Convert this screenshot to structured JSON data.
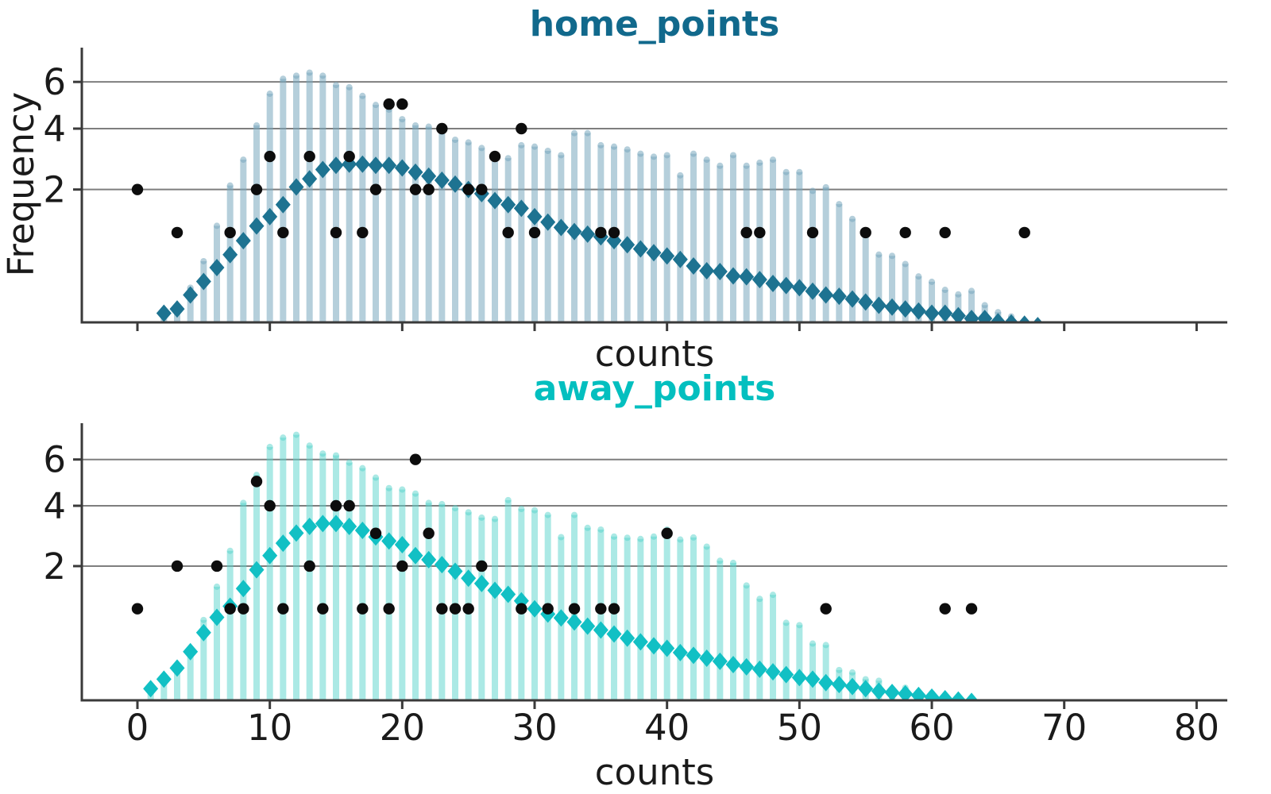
{
  "figure": {
    "background": "#ffffff",
    "grid_color": "#7e7e7e",
    "spine_color": "#3a3a3a",
    "text_color": "#1a1a1a",
    "observed_dot_color": "#0d0d0d"
  },
  "chart_data": [
    {
      "type": "bar",
      "id": "home",
      "title": "home_points",
      "title_color": "#11698c",
      "xlabel": "counts",
      "ylabel": "Frequency",
      "yscale": "sqrt",
      "grid": true,
      "xticks": [
        0,
        10,
        20,
        30,
        40,
        50,
        60,
        70,
        80
      ],
      "xtick_labels": [
        "0",
        "10",
        "20",
        "30",
        "40",
        "50",
        "60",
        "70",
        "80"
      ],
      "show_xtick_labels": false,
      "ytick_labels": [
        "6",
        "4",
        "2"
      ],
      "yticks": [
        6,
        4,
        2
      ],
      "xlim": [
        -4.2,
        82.3
      ],
      "ylim": [
        0.015,
        7.7
      ],
      "bar_color": "rgba(121,167,189,0.55)",
      "mean_color": "#1e7391",
      "bars_start_x": 2,
      "bar_heights": [
        0.07,
        0.1,
        0.25,
        0.57,
        1.2,
        2.2,
        3.0,
        4.25,
        5.6,
        6.3,
        6.45,
        6.6,
        6.45,
        6.0,
        5.9,
        5.5,
        5.1,
        4.9,
        4.5,
        4.25,
        4.2,
        4.0,
        3.7,
        3.6,
        3.4,
        3.2,
        3.05,
        3.5,
        3.45,
        3.3,
        3.15,
        3.95,
        3.95,
        3.5,
        3.45,
        3.35,
        3.2,
        3.1,
        3.15,
        2.5,
        3.2,
        3.0,
        2.8,
        3.15,
        2.8,
        2.9,
        3.0,
        2.6,
        2.6,
        2.05,
        2.15,
        1.7,
        1.35,
        1.05,
        0.67,
        0.65,
        0.53,
        0.37,
        0.31,
        0.23,
        0.19,
        0.22,
        0.11,
        0.07,
        0.05,
        0.03,
        0.03,
        0.02,
        0.02,
        0.015
      ],
      "mean_start_x": 2,
      "mean_freq": [
        0.05,
        0.07,
        0.16,
        0.28,
        0.44,
        0.62,
        0.85,
        1.13,
        1.33,
        1.61,
        2.07,
        2.3,
        2.58,
        2.71,
        2.75,
        2.75,
        2.71,
        2.71,
        2.63,
        2.5,
        2.38,
        2.26,
        2.15,
        2.0,
        1.89,
        1.71,
        1.61,
        1.52,
        1.33,
        1.21,
        1.1,
        1.02,
        0.97,
        0.92,
        0.85,
        0.78,
        0.71,
        0.65,
        0.6,
        0.55,
        0.46,
        0.4,
        0.39,
        0.34,
        0.33,
        0.3,
        0.26,
        0.24,
        0.22,
        0.19,
        0.16,
        0.15,
        0.13,
        0.11,
        0.09,
        0.08,
        0.07,
        0.06,
        0.05,
        0.05,
        0.04,
        0.03,
        0.03,
        0.02,
        0.017,
        0.014,
        0.011
      ],
      "observed_points": [
        [
          0,
          2
        ],
        [
          3,
          1
        ],
        [
          7,
          1
        ],
        [
          9,
          2
        ],
        [
          10,
          3
        ],
        [
          11,
          1
        ],
        [
          13,
          3
        ],
        [
          15,
          1
        ],
        [
          16,
          3
        ],
        [
          17,
          1
        ],
        [
          18,
          2
        ],
        [
          19,
          5
        ],
        [
          20,
          5
        ],
        [
          21,
          2
        ],
        [
          22,
          2
        ],
        [
          23,
          4
        ],
        [
          25,
          2
        ],
        [
          26,
          2
        ],
        [
          27,
          3
        ],
        [
          28,
          1
        ],
        [
          29,
          4
        ],
        [
          30,
          1
        ],
        [
          35,
          1
        ],
        [
          36,
          1
        ],
        [
          46,
          1
        ],
        [
          47,
          1
        ],
        [
          51,
          1
        ],
        [
          55,
          1
        ],
        [
          58,
          1
        ],
        [
          61,
          1
        ],
        [
          67,
          1
        ]
      ]
    },
    {
      "type": "bar",
      "id": "away",
      "title": "away_points",
      "title_color": "#03bfbf",
      "xlabel": "counts",
      "ylabel": "",
      "yscale": "sqrt",
      "grid": true,
      "xticks": [
        0,
        10,
        20,
        30,
        40,
        50,
        60,
        70,
        80
      ],
      "xtick_labels": [
        "0",
        "10",
        "20",
        "30",
        "40",
        "50",
        "60",
        "70",
        "80"
      ],
      "show_xtick_labels": true,
      "ytick_labels": [
        "6",
        "4",
        "2"
      ],
      "yticks": [
        6,
        4,
        2
      ],
      "xlim": [
        -4.2,
        82.3
      ],
      "ylim": [
        0.012,
        7.85
      ],
      "bar_color": "rgba(88,212,204,0.5)",
      "mean_color": "#12c0c4",
      "bars_start_x": 1,
      "bar_heights": [
        0.06,
        0.12,
        0.19,
        0.39,
        0.85,
        1.55,
        2.54,
        4.24,
        5.43,
        6.77,
        7.25,
        7.4,
        6.84,
        6.44,
        6.35,
        6.0,
        5.74,
        5.31,
        4.85,
        4.79,
        4.62,
        4.24,
        4.19,
        4.03,
        3.87,
        3.67,
        3.62,
        4.35,
        4.0,
        3.95,
        3.77,
        2.98,
        3.77,
        3.3,
        3.24,
        3.0,
        2.96,
        2.92,
        3.0,
        3.24,
        2.9,
        2.97,
        2.67,
        2.24,
        2.18,
        1.58,
        1.27,
        1.36,
        0.8,
        0.76,
        0.48,
        0.46,
        0.19,
        0.17,
        0.12,
        0.11,
        0.06,
        0.07,
        0.05,
        0.045,
        0.035,
        0.03,
        0.02,
        0.015
      ],
      "mean_start_x": 1,
      "mean_freq": [
        0.05,
        0.1,
        0.18,
        0.34,
        0.59,
        0.84,
        1.05,
        1.43,
        1.9,
        2.3,
        2.68,
        3.01,
        3.24,
        3.34,
        3.34,
        3.24,
        3.1,
        2.88,
        2.75,
        2.63,
        2.3,
        2.18,
        2.04,
        1.86,
        1.68,
        1.55,
        1.39,
        1.3,
        1.16,
        1.0,
        0.9,
        0.83,
        0.76,
        0.69,
        0.63,
        0.57,
        0.51,
        0.46,
        0.41,
        0.38,
        0.33,
        0.3,
        0.27,
        0.24,
        0.21,
        0.19,
        0.17,
        0.15,
        0.13,
        0.11,
        0.1,
        0.08,
        0.07,
        0.06,
        0.05,
        0.04,
        0.035,
        0.03,
        0.025,
        0.02,
        0.016,
        0.013,
        0.01
      ],
      "observed_points": [
        [
          0,
          1
        ],
        [
          3,
          2
        ],
        [
          6,
          2
        ],
        [
          7,
          1
        ],
        [
          8,
          1
        ],
        [
          9,
          5
        ],
        [
          10,
          4
        ],
        [
          11,
          1
        ],
        [
          13,
          2
        ],
        [
          14,
          1
        ],
        [
          15,
          4
        ],
        [
          16,
          4
        ],
        [
          17,
          1
        ],
        [
          18,
          3
        ],
        [
          19,
          1
        ],
        [
          20,
          2
        ],
        [
          21,
          6
        ],
        [
          22,
          3
        ],
        [
          23,
          1
        ],
        [
          24,
          1
        ],
        [
          25,
          1
        ],
        [
          26,
          2
        ],
        [
          29,
          1
        ],
        [
          31,
          1
        ],
        [
          33,
          1
        ],
        [
          35,
          1
        ],
        [
          36,
          1
        ],
        [
          40,
          3
        ],
        [
          52,
          1
        ],
        [
          61,
          1
        ],
        [
          63,
          1
        ]
      ]
    }
  ]
}
